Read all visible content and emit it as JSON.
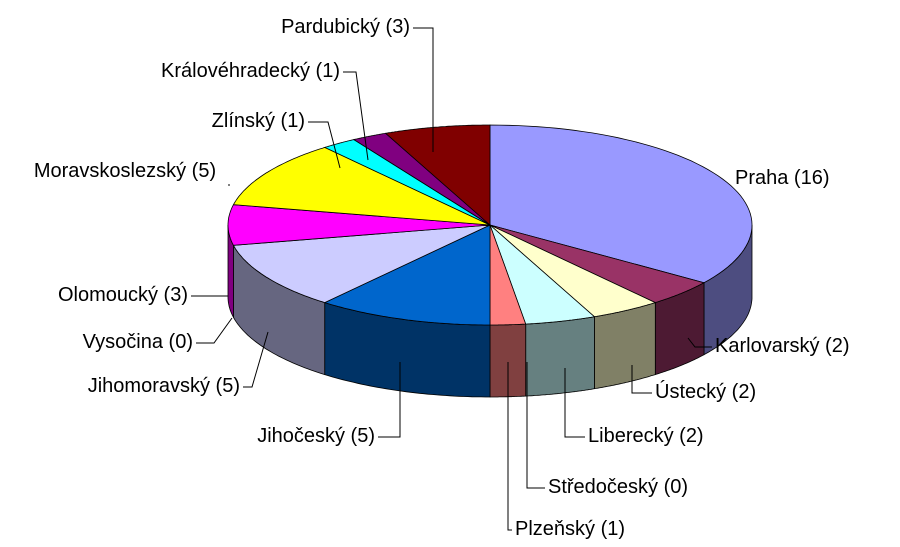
{
  "chart_data": {
    "type": "pie3d",
    "categories": [
      "Praha (16)",
      "Karlovarský (2)",
      "Ústecký (2)",
      "Liberecký (2)",
      "Středočeský (0)",
      "Plzeňský (1)",
      "Jihočeský (5)",
      "Jihomoravský (5)",
      "Vysočina (0)",
      "Olomoucký (3)",
      "Moravskoslezský (5)",
      "Zlínský (1)",
      "Královéhradecký (1)",
      "Pardubický (3)"
    ],
    "values": [
      16,
      2,
      2,
      2,
      0,
      1,
      5,
      5,
      0,
      3,
      5,
      1,
      1,
      3
    ],
    "colors": [
      "#9999ff",
      "#993366",
      "#ffffcc",
      "#ccffff",
      "#660066",
      "#ff8080",
      "#0066cc",
      "#ccccff",
      "#000080",
      "#ff00ff",
      "#ffff00",
      "#00ffff",
      "#800080",
      "#800000"
    ]
  }
}
